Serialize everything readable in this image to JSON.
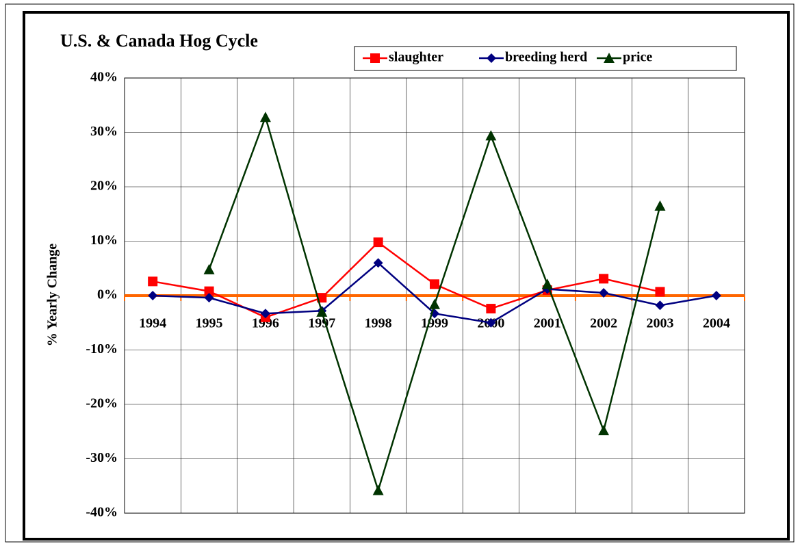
{
  "chart_data": {
    "type": "line",
    "title": "U.S. & Canada Hog Cycle",
    "y_label": "% Yearly Change",
    "categories": [
      "1994",
      "1995",
      "1996",
      "1997",
      "1998",
      "1999",
      "2000",
      "2001",
      "2002",
      "2003",
      "2004"
    ],
    "series": [
      {
        "name": "slaughter",
        "color": "#ff0000",
        "marker": "square",
        "values": [
          2.6,
          0.8,
          -4.0,
          -0.4,
          9.8,
          2.1,
          -2.4,
          1.0,
          3.1,
          0.7,
          null
        ]
      },
      {
        "name": "breeding herd",
        "color": "#000080",
        "marker": "diamond",
        "values": [
          0,
          -0.4,
          -3.3,
          -2.8,
          6.0,
          -3.3,
          -5.0,
          1.2,
          0.5,
          -1.8,
          0
        ]
      },
      {
        "name": "price",
        "color": "#003300",
        "marker": "triangle",
        "values": [
          null,
          4.8,
          32.8,
          -3.0,
          -35.8,
          -1.6,
          29.4,
          2.1,
          -24.8,
          16.5,
          null
        ]
      }
    ],
    "ylim": [
      -40,
      40
    ],
    "yticks": [
      {
        "value": -40,
        "label": "-40%"
      },
      {
        "value": -30,
        "label": "-30%"
      },
      {
        "value": -20,
        "label": "-20%"
      },
      {
        "value": -10,
        "label": "-10%"
      },
      {
        "value": 0,
        "label": "0%"
      },
      {
        "value": 10,
        "label": "10%"
      },
      {
        "value": 20,
        "label": "20%"
      },
      {
        "value": 30,
        "label": "30%"
      },
      {
        "value": 40,
        "label": "40%"
      }
    ],
    "grid": true,
    "zero_line_color": "#ff6600",
    "legend": "top"
  }
}
